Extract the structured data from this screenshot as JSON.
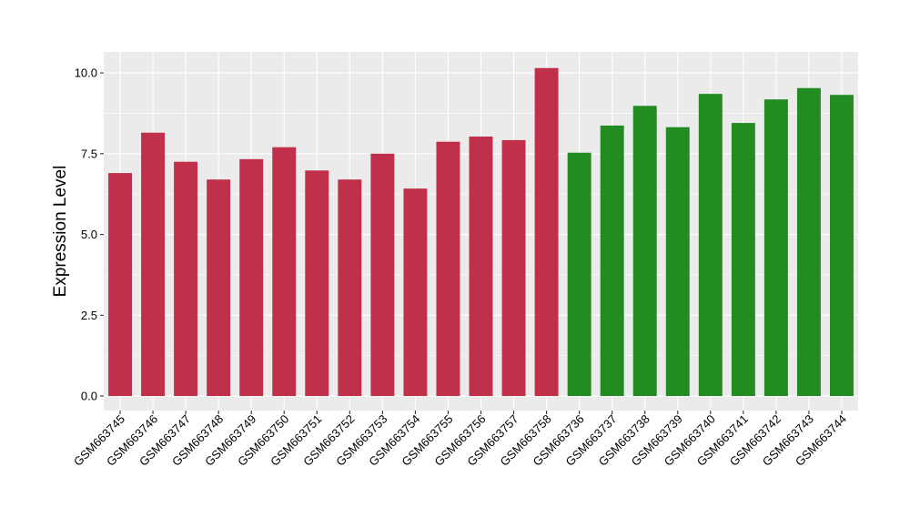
{
  "chart_data": {
    "type": "bar",
    "xlabel": "",
    "ylabel": "Expression Level",
    "ylim": [
      -0.45,
      10.65
    ],
    "yticks": [
      0.0,
      2.5,
      5.0,
      7.5,
      10.0
    ],
    "ytick_labels": [
      "0.0",
      "2.5",
      "5.0",
      "7.5",
      "10.0"
    ],
    "grid": true,
    "legend": "none",
    "panel_background": "#EBEBEB",
    "grid_color": "#FFFFFF",
    "categories": [
      "GSM663745",
      "GSM663746",
      "GSM663747",
      "GSM663748",
      "GSM663749",
      "GSM663750",
      "GSM663751",
      "GSM663752",
      "GSM663753",
      "GSM663754",
      "GSM663755",
      "GSM663756",
      "GSM663757",
      "GSM663758",
      "GSM663736",
      "GSM663737",
      "GSM663738",
      "GSM663739",
      "GSM663740",
      "GSM663741",
      "GSM663742",
      "GSM663743",
      "GSM663744"
    ],
    "values": [
      6.9,
      8.15,
      7.25,
      6.7,
      7.33,
      7.7,
      6.98,
      6.7,
      7.5,
      6.42,
      7.87,
      8.03,
      7.92,
      10.15,
      7.53,
      8.37,
      8.98,
      8.32,
      9.35,
      8.45,
      9.18,
      9.53,
      9.32
    ],
    "bar_colors": [
      "#C1304A",
      "#C1304A",
      "#C1304A",
      "#C1304A",
      "#C1304A",
      "#C1304A",
      "#C1304A",
      "#C1304A",
      "#C1304A",
      "#C1304A",
      "#C1304A",
      "#C1304A",
      "#C1304A",
      "#C1304A",
      "#228B22",
      "#228B22",
      "#228B22",
      "#228B22",
      "#228B22",
      "#228B22",
      "#228B22",
      "#228B22",
      "#228B22"
    ]
  }
}
